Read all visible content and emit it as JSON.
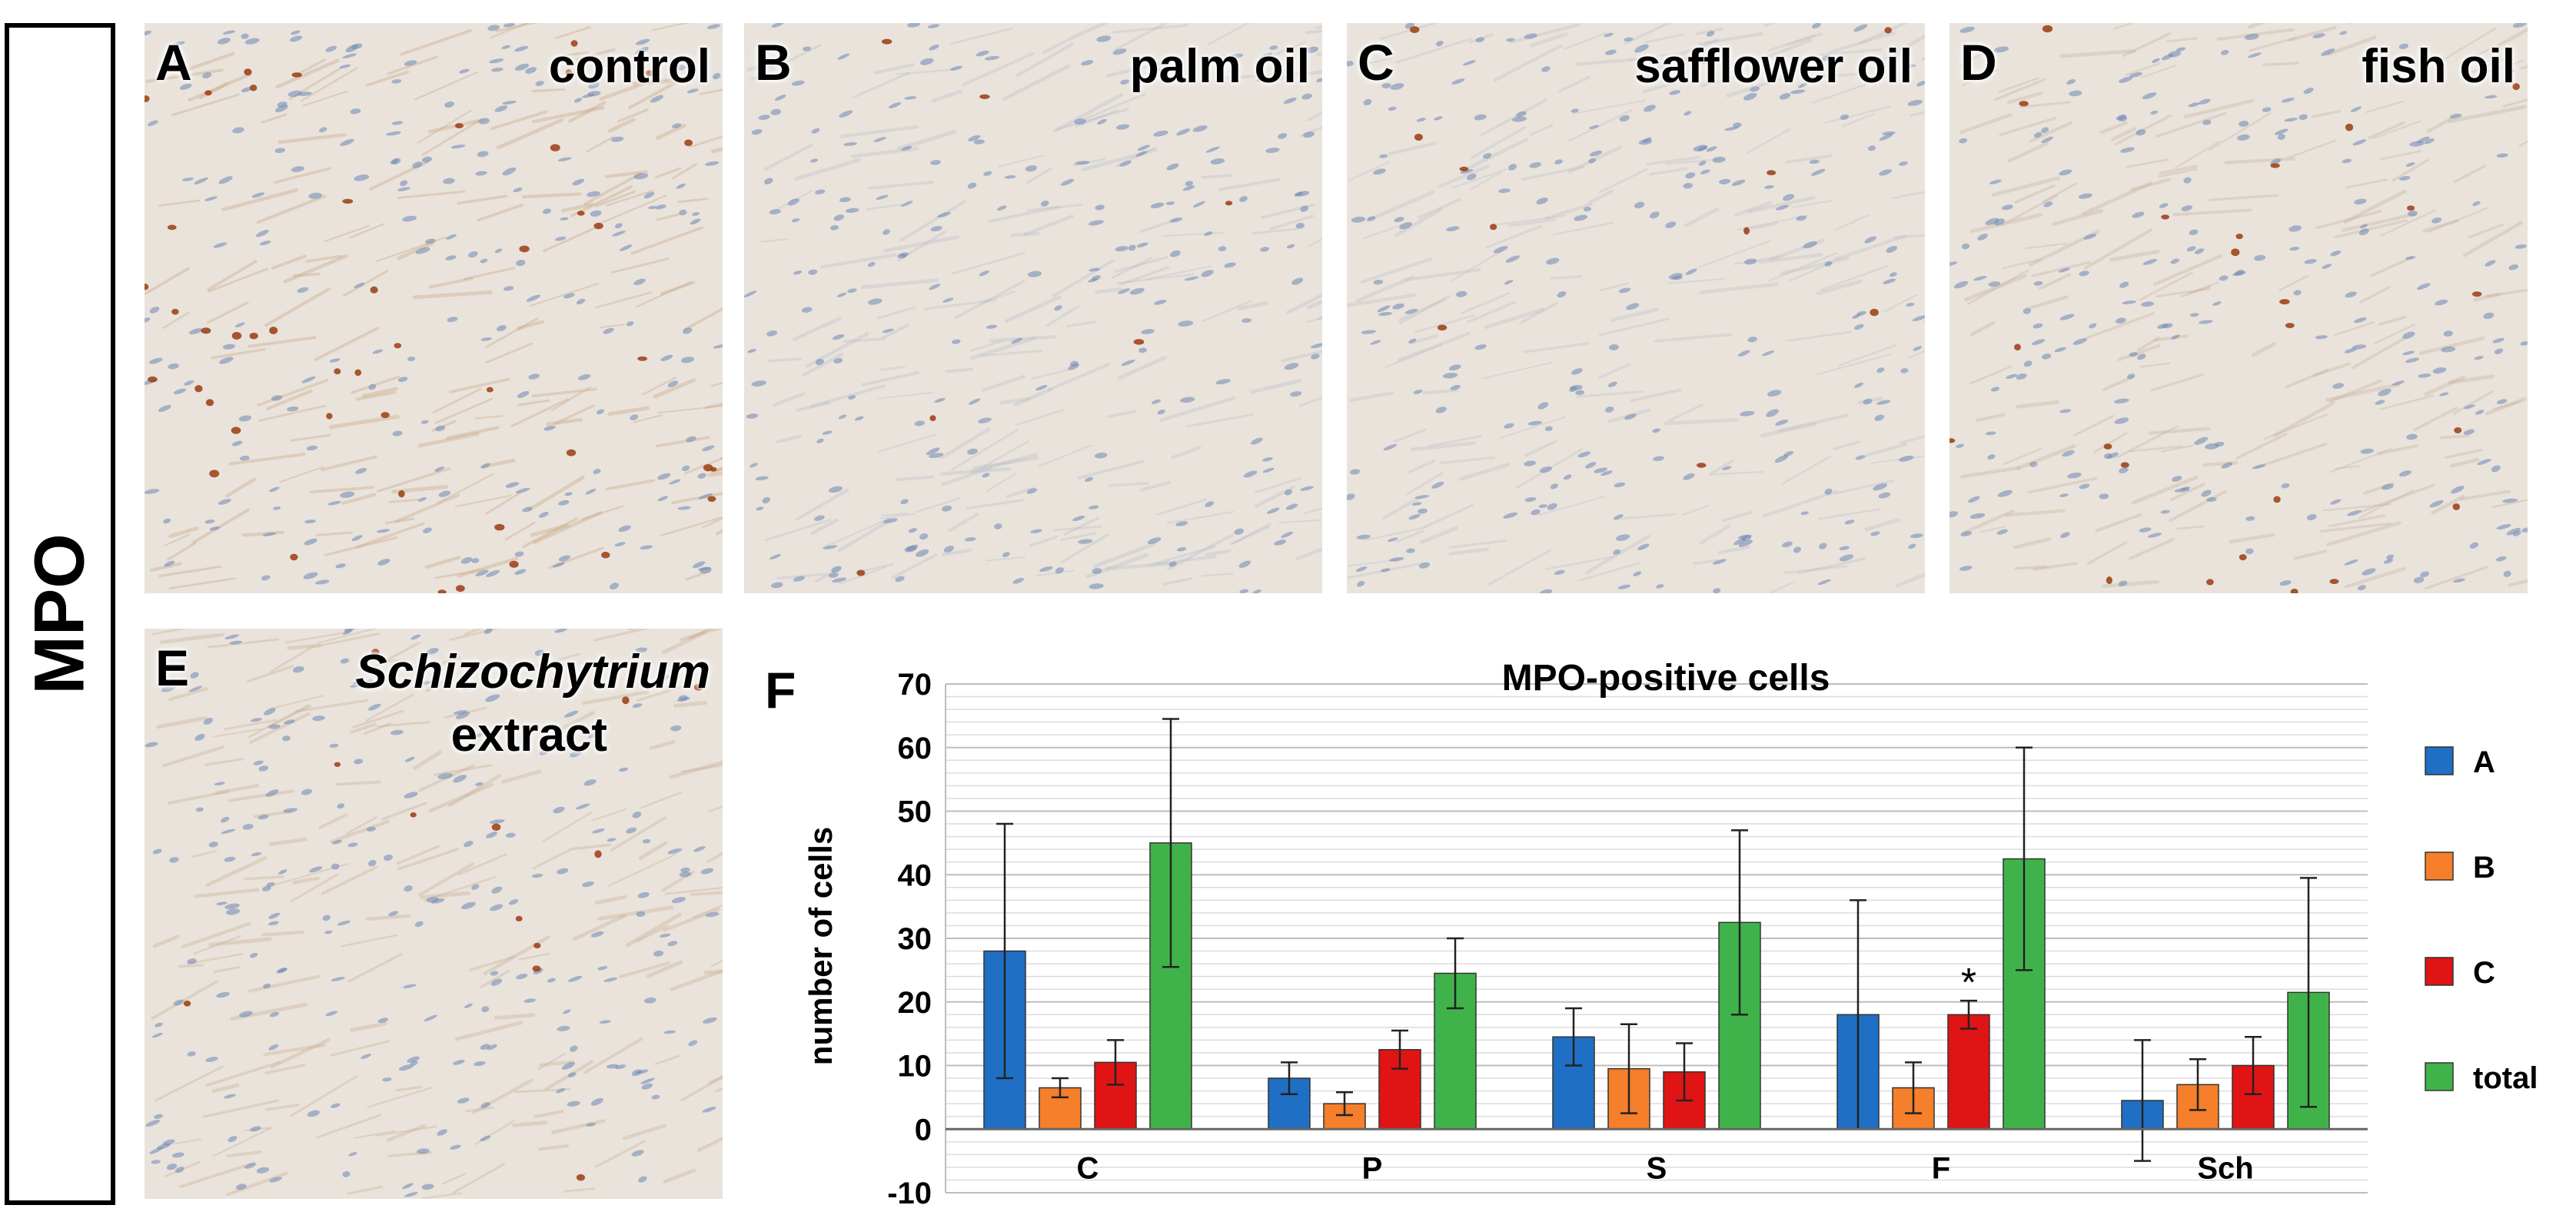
{
  "side_label": "MPO",
  "panels": [
    {
      "letter": "A",
      "label": "control",
      "tint": "#c9a07a",
      "dots": 46
    },
    {
      "letter": "B",
      "label": "palm oil",
      "tint": "#b9bcc8",
      "dots": 6
    },
    {
      "letter": "C",
      "label": "safflower oil",
      "tint": "#bcbec6",
      "dots": 10
    },
    {
      "letter": "D",
      "label": "fish oil",
      "tint": "#c6b09a",
      "dots": 24
    },
    {
      "letter": "E",
      "label_line1": "Schizochytrium",
      "label_line2": "extract",
      "tint": "#c8ac90",
      "dots": 12
    }
  ],
  "chart_data": {
    "panel_letter": "F",
    "type": "bar",
    "title": "MPO-positive cells",
    "xlabel": "",
    "ylabel": "number of cells",
    "ylim": [
      -10,
      70
    ],
    "yticks": [
      -10,
      0,
      10,
      20,
      30,
      40,
      50,
      60,
      70
    ],
    "grid": true,
    "legend_position": "right",
    "categories": [
      "C",
      "P",
      "S",
      "F",
      "Sch"
    ],
    "series": [
      {
        "name": "A",
        "color": "#1f6fc4",
        "values": [
          28,
          8,
          14.5,
          18,
          4.5
        ],
        "error": [
          20,
          2.5,
          4.5,
          18,
          9.5
        ]
      },
      {
        "name": "B",
        "color": "#f57f2a",
        "values": [
          6.5,
          4,
          9.5,
          6.5,
          7
        ],
        "error": [
          1.5,
          1.8,
          7,
          4,
          4
        ]
      },
      {
        "name": "C",
        "color": "#e01414",
        "values": [
          10.5,
          12.5,
          9,
          18,
          10
        ],
        "error": [
          3.5,
          3,
          4.5,
          2.2,
          4.5
        ]
      },
      {
        "name": "total",
        "color": "#3fb34a",
        "values": [
          45,
          24.5,
          32.5,
          42.5,
          21.5
        ],
        "error": [
          19.5,
          5.5,
          14.5,
          17.5,
          18
        ]
      }
    ],
    "annotations": [
      {
        "series": "C",
        "category": "F",
        "text": "*"
      }
    ]
  }
}
